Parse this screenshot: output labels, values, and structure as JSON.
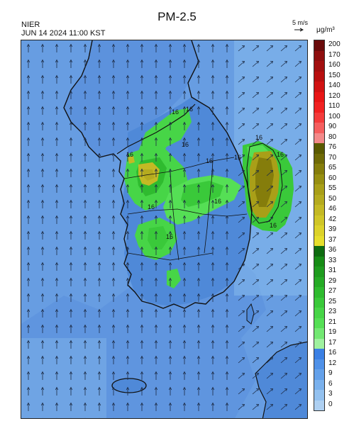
{
  "title": "PM-2.5",
  "agency": "NIER",
  "datetime": "JUN 14 2024 11:00 KST",
  "vector_legend": {
    "label": "5 m/s",
    "icon": "arrow-right-icon"
  },
  "unit": "μg/m³",
  "colorbar": {
    "labels": [
      "200",
      "170",
      "160",
      "150",
      "140",
      "120",
      "110",
      "100",
      "90",
      "80",
      "76",
      "70",
      "65",
      "60",
      "55",
      "50",
      "46",
      "42",
      "39",
      "37",
      "36",
      "33",
      "31",
      "29",
      "27",
      "25",
      "23",
      "21",
      "19",
      "17",
      "16",
      "12",
      "9",
      "6",
      "3",
      "0"
    ],
    "colors": [
      "#6a0b0b",
      "#8e0e0e",
      "#a20f0f",
      "#b80f0f",
      "#d11212",
      "#e81616",
      "#f12222",
      "#f43c3c",
      "#f55f5f",
      "#f38a8a",
      "#5a5a00",
      "#6f6a06",
      "#857d0b",
      "#978f11",
      "#a99f18",
      "#b5ab1f",
      "#c4b924",
      "#d0c627",
      "#dcd22a",
      "#e6de2c",
      "#0e6b10",
      "#178c16",
      "#1f9c1f",
      "#26ab26",
      "#2fbb2f",
      "#3ac93a",
      "#47d547",
      "#55df55",
      "#73e873",
      "#9ff19f",
      "#3b80e4",
      "#4f91e8",
      "#64a1ea",
      "#7ab1ed",
      "#93c1ef",
      "#aed0f2"
    ]
  },
  "contour_labels": [
    "16",
    "16",
    "16",
    "16",
    "16",
    "16",
    "16",
    "16",
    "16",
    "16",
    "16",
    "16"
  ]
}
